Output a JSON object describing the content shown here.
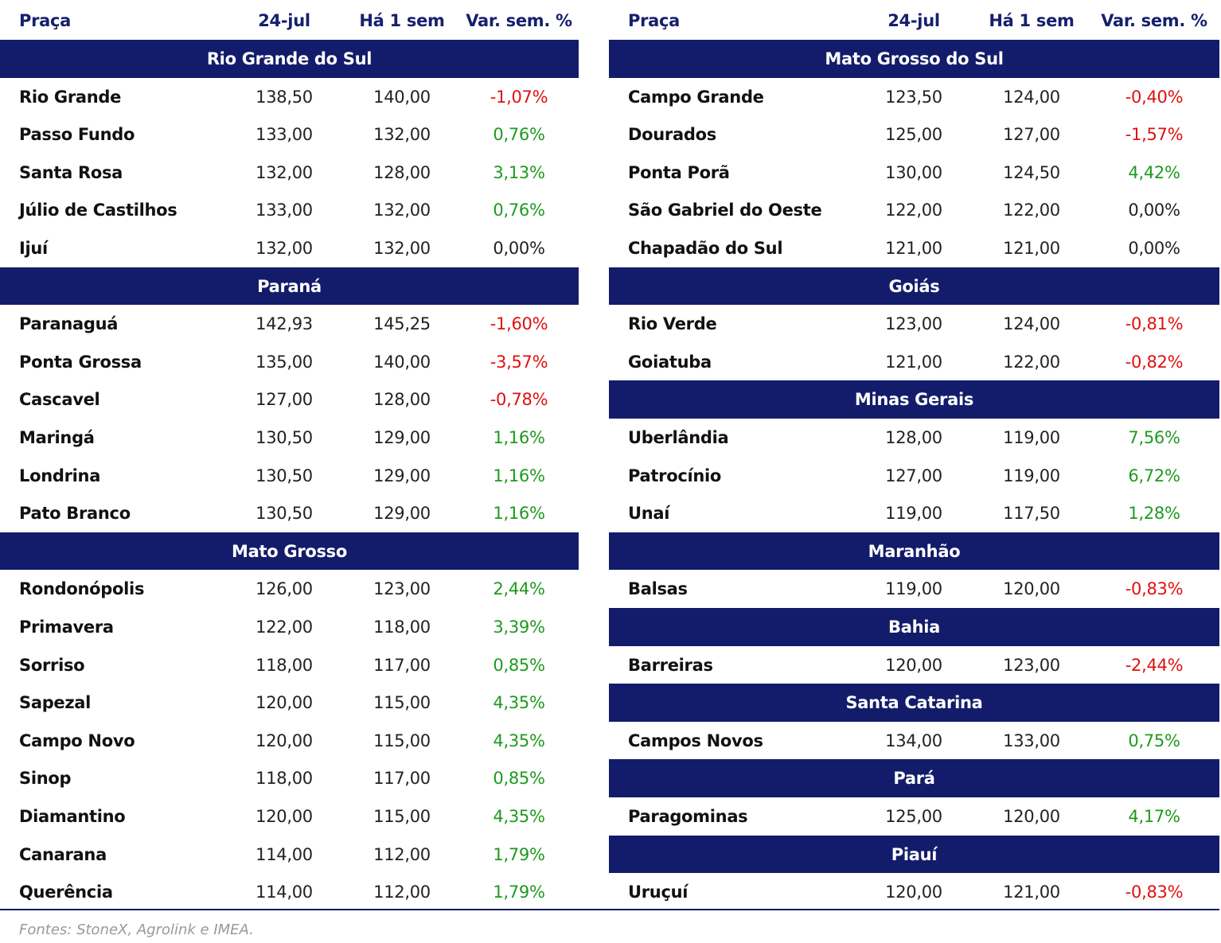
{
  "tables": [
    {
      "columns": [
        "Praça",
        "24-jul",
        "Há 1 sem",
        "Var. sem. %"
      ],
      "sections": [
        {
          "title": "Rio Grande do Sul",
          "rows": [
            [
              "Rio Grande",
              "138,50",
              "140,00",
              "-1,07%"
            ],
            [
              "Passo Fundo",
              "133,00",
              "132,00",
              "0,76%"
            ],
            [
              "Santa Rosa",
              "132,00",
              "128,00",
              "3,13%"
            ],
            [
              "Júlio de Castilhos",
              "133,00",
              "132,00",
              "0,76%"
            ],
            [
              "Ijuí",
              "132,00",
              "132,00",
              "0,00%"
            ]
          ]
        },
        {
          "title": "Paraná",
          "rows": [
            [
              "Paranaguá",
              "142,93",
              "145,25",
              "-1,60%"
            ],
            [
              "Ponta Grossa",
              "135,00",
              "140,00",
              "-3,57%"
            ],
            [
              "Cascavel",
              "127,00",
              "128,00",
              "-0,78%"
            ],
            [
              "Maringá",
              "130,50",
              "129,00",
              "1,16%"
            ],
            [
              "Londrina",
              "130,50",
              "129,00",
              "1,16%"
            ],
            [
              "Pato Branco",
              "130,50",
              "129,00",
              "1,16%"
            ]
          ]
        },
        {
          "title": "Mato Grosso",
          "rows": [
            [
              "Rondonópolis",
              "126,00",
              "123,00",
              "2,44%"
            ],
            [
              "Primavera",
              "122,00",
              "118,00",
              "3,39%"
            ],
            [
              "Sorriso",
              "118,00",
              "117,00",
              "0,85%"
            ],
            [
              "Sapezal",
              "120,00",
              "115,00",
              "4,35%"
            ],
            [
              "Campo Novo",
              "120,00",
              "115,00",
              "4,35%"
            ],
            [
              "Sinop",
              "118,00",
              "117,00",
              "0,85%"
            ],
            [
              "Diamantino",
              "120,00",
              "115,00",
              "4,35%"
            ],
            [
              "Canarana",
              "114,00",
              "112,00",
              "1,79%"
            ],
            [
              "Querência",
              "114,00",
              "112,00",
              "1,79%"
            ]
          ]
        }
      ]
    },
    {
      "columns": [
        "Praça",
        "24-jul",
        "Há 1 sem",
        "Var. sem. %"
      ],
      "sections": [
        {
          "title": "Mato Grosso do Sul",
          "rows": [
            [
              "Campo Grande",
              "123,50",
              "124,00",
              "-0,40%"
            ],
            [
              "Dourados",
              "125,00",
              "127,00",
              "-1,57%"
            ],
            [
              "Ponta Porã",
              "130,00",
              "124,50",
              "4,42%"
            ],
            [
              "São Gabriel do Oeste",
              "122,00",
              "122,00",
              "0,00%"
            ],
            [
              "Chapadão do Sul",
              "121,00",
              "121,00",
              "0,00%"
            ]
          ]
        },
        {
          "title": "Goiás",
          "rows": [
            [
              "Rio Verde",
              "123,00",
              "124,00",
              "-0,81%"
            ],
            [
              "Goiatuba",
              "121,00",
              "122,00",
              "-0,82%"
            ]
          ]
        },
        {
          "title": "Minas Gerais",
          "rows": [
            [
              "Uberlândia",
              "128,00",
              "119,00",
              "7,56%"
            ],
            [
              "Patrocínio",
              "127,00",
              "119,00",
              "6,72%"
            ],
            [
              "Unaí",
              "119,00",
              "117,50",
              "1,28%"
            ]
          ]
        },
        {
          "title": "Maranhão",
          "rows": [
            [
              "Balsas",
              "119,00",
              "120,00",
              "-0,83%"
            ]
          ]
        },
        {
          "title": "Bahia",
          "rows": [
            [
              "Barreiras",
              "120,00",
              "123,00",
              "-2,44%"
            ]
          ]
        },
        {
          "title": "Santa Catarina",
          "rows": [
            [
              "Campos Novos",
              "134,00",
              "133,00",
              "0,75%"
            ]
          ]
        },
        {
          "title": "Pará",
          "rows": [
            [
              "Paragominas",
              "125,00",
              "120,00",
              "4,17%"
            ]
          ]
        },
        {
          "title": "Piauí",
          "rows": [
            [
              "Uruçuí",
              "120,00",
              "121,00",
              "-0,83%"
            ]
          ]
        }
      ]
    }
  ],
  "footer": "Fontes: StoneX, Agrolink e IMEA."
}
